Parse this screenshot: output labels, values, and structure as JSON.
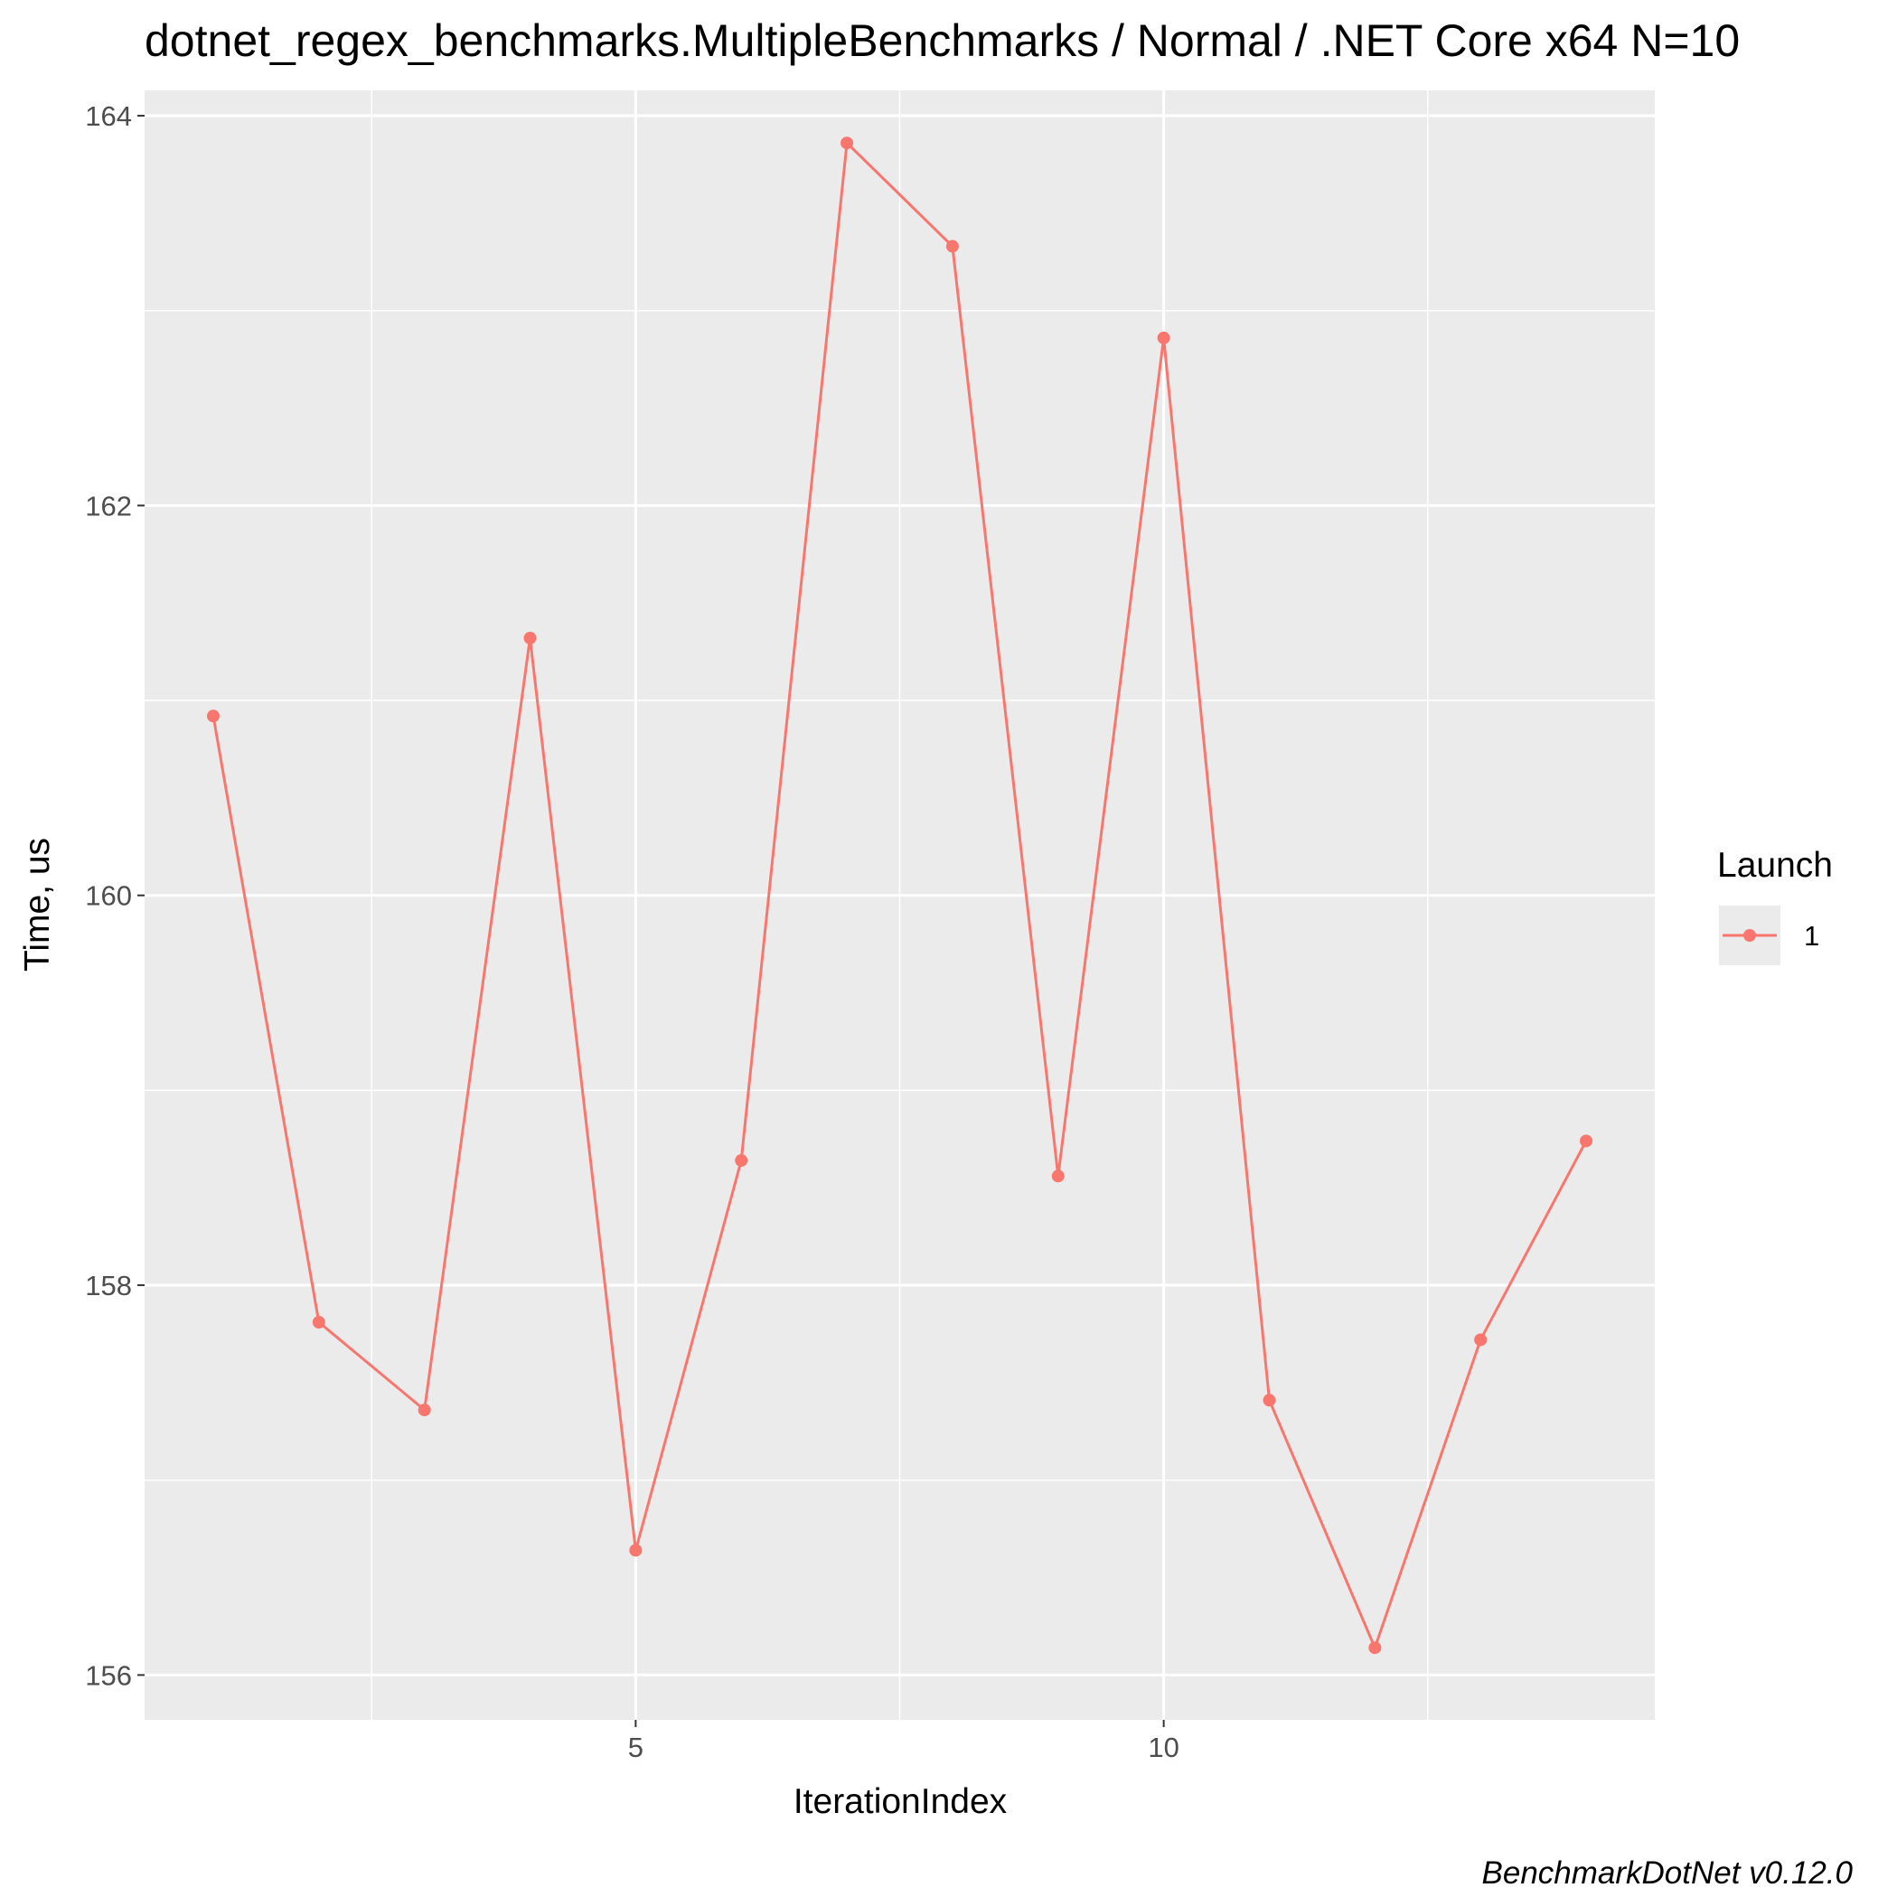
{
  "chart_data": {
    "type": "line",
    "title": "dotnet_regex_benchmarks.MultipleBenchmarks / Normal / .NET Core x64 N=10",
    "xlabel": "IterationIndex",
    "ylabel": "Time, us",
    "caption": "BenchmarkDotNet v0.12.0",
    "xlim": [
      0.35,
      14.65
    ],
    "ylim": [
      155.77,
      164.13
    ],
    "x_ticks": [
      5,
      10
    ],
    "x_tick_labels": [
      "5",
      "10"
    ],
    "y_ticks": [
      156,
      158,
      160,
      162,
      164
    ],
    "y_tick_labels": [
      "156",
      "158",
      "160",
      "162",
      "164"
    ],
    "grid": true,
    "legend": {
      "title": "Launch",
      "position": "right"
    },
    "series": [
      {
        "name": "1",
        "color": "#F8766D",
        "x": [
          1,
          2,
          3,
          4,
          5,
          6,
          7,
          8,
          9,
          10,
          11,
          12,
          13,
          14
        ],
        "y": [
          160.92,
          157.81,
          157.36,
          161.32,
          156.64,
          158.64,
          163.86,
          163.33,
          158.56,
          162.86,
          157.41,
          156.14,
          157.72,
          158.74
        ]
      }
    ]
  }
}
